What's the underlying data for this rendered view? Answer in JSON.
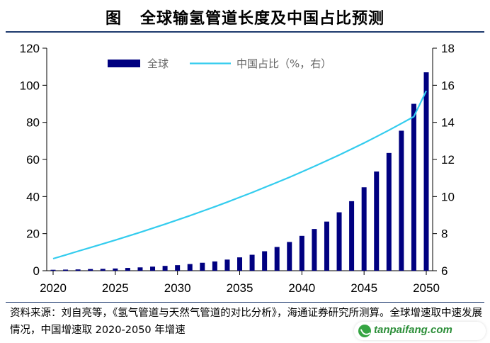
{
  "title": {
    "label": "图",
    "text": "全球输氢管道长度及中国占比预测"
  },
  "source_note": "资料来源：刘自亮等，《氢气管道与天然气管道的对比分析》，海通证券研究所测算。全球增速取中速发展情况，中国增速取 2020-2050 年增速",
  "watermark": "tanpaifang.com",
  "colors": {
    "bar": "#000080",
    "line": "#33ccee",
    "axis": "#000000"
  },
  "chart_data": {
    "type": "bar",
    "x": [
      2020,
      2021,
      2022,
      2023,
      2024,
      2025,
      2026,
      2027,
      2028,
      2029,
      2030,
      2031,
      2032,
      2033,
      2034,
      2035,
      2036,
      2037,
      2038,
      2039,
      2040,
      2041,
      2042,
      2043,
      2044,
      2045,
      2046,
      2047,
      2048,
      2049,
      2050
    ],
    "series": [
      {
        "name": "全球",
        "type": "bar",
        "axis": "left",
        "values": [
          0.5,
          0.6,
          0.7,
          0.9,
          1.0,
          1.2,
          1.5,
          1.8,
          2.2,
          2.6,
          3.0,
          3.6,
          4.3,
          5.0,
          6.0,
          7.2,
          8.6,
          10.5,
          12.8,
          15.5,
          18.8,
          22.5,
          26.5,
          31.5,
          37.5,
          45,
          53.5,
          63.5,
          75.5,
          90,
          107
        ]
      },
      {
        "name": "中国占比（%，右）",
        "type": "line",
        "axis": "right",
        "values": [
          6.65,
          6.85,
          7.05,
          7.25,
          7.45,
          7.65,
          7.86,
          8.07,
          8.29,
          8.51,
          8.74,
          8.97,
          9.21,
          9.45,
          9.7,
          9.96,
          10.22,
          10.49,
          10.76,
          11.04,
          11.33,
          11.63,
          11.93,
          12.24,
          12.56,
          12.89,
          13.23,
          13.58,
          13.94,
          14.31,
          15.7
        ]
      }
    ],
    "y_left": {
      "min": 0,
      "max": 120,
      "ticks": [
        0,
        20,
        40,
        60,
        80,
        100,
        120
      ]
    },
    "y_right": {
      "min": 6,
      "max": 18,
      "ticks": [
        6,
        8,
        10,
        12,
        14,
        16,
        18
      ]
    },
    "x_ticks": [
      2020,
      2025,
      2030,
      2035,
      2040,
      2045,
      2050
    ],
    "legend_position": "top-center",
    "grid": false
  }
}
